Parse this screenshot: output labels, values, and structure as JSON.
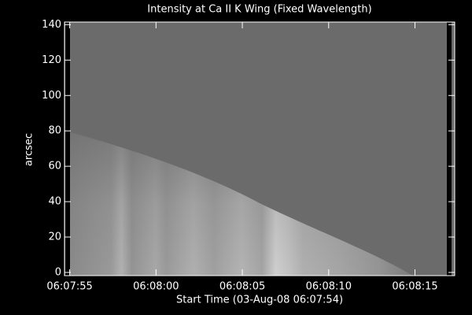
{
  "chart_data": {
    "type": "image",
    "title": "Intensity at Ca II K Wing (Fixed Wavelength)",
    "x_label": "Start Time (03-Aug-08 06:07:54)",
    "y_label": "arcsec",
    "xlim": [
      0.7,
      23.3
    ],
    "xticks": [
      {
        "value": 1,
        "label": "06:07:55"
      },
      {
        "value": 6,
        "label": "06:08:00"
      },
      {
        "value": 11,
        "label": "06:08:05"
      },
      {
        "value": 16,
        "label": "06:08:10"
      },
      {
        "value": 21,
        "label": "06:08:15"
      }
    ],
    "ylim": [
      -1.8,
      141.5
    ],
    "yticks": [
      0,
      20,
      40,
      60,
      80,
      100,
      120,
      140
    ]
  }
}
